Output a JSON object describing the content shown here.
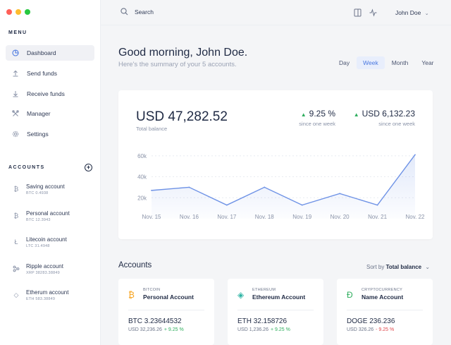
{
  "window": {
    "dots": [
      "#ff5f57",
      "#febc2e",
      "#28c840"
    ]
  },
  "sidebar": {
    "menu_title": "MENU",
    "items": [
      {
        "label": "Dashboard",
        "icon": "pie-chart-icon"
      },
      {
        "label": "Send funds",
        "icon": "arrow-up-icon"
      },
      {
        "label": "Receive funds",
        "icon": "arrow-down-icon"
      },
      {
        "label": "Manager",
        "icon": "tools-icon"
      },
      {
        "label": "Settings",
        "icon": "gear-icon"
      }
    ],
    "accounts_title": "ACCOUNTS",
    "accounts": [
      {
        "name": "Saving account",
        "balance": "BTC 0.4938",
        "icon": "bitcoin-icon"
      },
      {
        "name": "Personal account",
        "balance": "BTC 12.3943",
        "icon": "bitcoin-icon"
      },
      {
        "name": "Litecoin account",
        "balance": "LTC 31.4948",
        "icon": "litecoin-icon"
      },
      {
        "name": "Ripple account",
        "balance": "XRP 38283.38849",
        "icon": "ripple-icon"
      },
      {
        "name": "Etherum account",
        "balance": "ETH 583.38849",
        "icon": "ethereum-icon"
      }
    ]
  },
  "topbar": {
    "search_placeholder": "Search",
    "user": "John Doe"
  },
  "header": {
    "greeting": "Good morning, John Doe.",
    "summary": "Here's the summary of your 5 accounts.",
    "ranges": [
      "Day",
      "Week",
      "Month",
      "Year"
    ],
    "active_range": "Week"
  },
  "balance_card": {
    "total": "USD 47,282.52",
    "total_label": "Total balance",
    "change_pct": "9.25 %",
    "change_pct_label": "since one week",
    "change_usd": "USD 6,132.23",
    "change_usd_label": "since one week"
  },
  "chart_data": {
    "type": "area",
    "categories": [
      "Nov. 15",
      "Nov. 16",
      "Nov. 17",
      "Nov. 18",
      "Nov. 19",
      "Nov. 20",
      "Nov. 21",
      "Nov. 22"
    ],
    "values": [
      27000,
      30000,
      13000,
      30000,
      13000,
      24000,
      13000,
      61000
    ],
    "yticks": [
      "20k",
      "40k",
      "60k"
    ],
    "ylim": [
      0,
      72000
    ],
    "grid": true,
    "color": "#6f93e6"
  },
  "accounts_section": {
    "title": "Accounts",
    "sort_prefix": "Sort by",
    "sort_value": "Total balance",
    "cards": [
      {
        "currency": "BITCOIN",
        "name": "Personal Account",
        "amount": "BTC 3.23644532",
        "usd": "USD 32,236.26",
        "change": "+ 9.25 %",
        "positive": true,
        "icon": "bitcoin-icon",
        "color": "#f7a21b"
      },
      {
        "currency": "ETHEREUM",
        "name": "Ethereum Account",
        "amount": "ETH 32.158726",
        "usd": "USD 1,236.26",
        "change": "+ 9.25 %",
        "positive": true,
        "icon": "ethereum-icon",
        "color": "#2bb3a3"
      },
      {
        "currency": "CRYPTOCURRENCY",
        "name": "Name Account",
        "amount": "DOGE 236.236",
        "usd": "USD 326.26",
        "change": "- 9.25 %",
        "positive": false,
        "icon": "doge-icon",
        "color": "#2fae5e"
      }
    ]
  }
}
